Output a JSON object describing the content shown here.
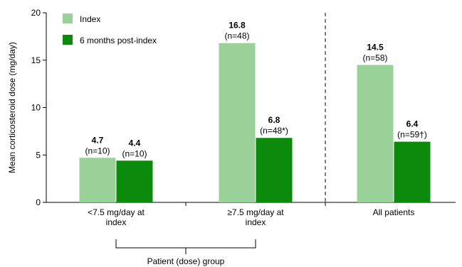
{
  "chart_data": {
    "type": "bar",
    "ylabel": "Mean corticosteroid dose (mg/day)",
    "xlabel": "Patient (dose) group",
    "ylim": [
      0,
      20
    ],
    "yticks": [
      "0",
      "5",
      "10",
      "15",
      "20"
    ],
    "categories": [
      "<7.5 mg/day at index",
      "≥7.5 mg/day at index",
      "All patients"
    ],
    "category_lines": [
      [
        "<7.5 mg/day at",
        "index"
      ],
      [
        "≥7.5 mg/day at",
        "index"
      ],
      [
        "All patients"
      ]
    ],
    "series": [
      {
        "name": "Index",
        "color": "#99d199",
        "values": [
          4.7,
          16.8,
          14.5
        ],
        "value_labels": [
          "4.7",
          "16.8",
          "14.5"
        ],
        "n_labels": [
          "(n=10)",
          "(n=48)",
          "(n=58)"
        ]
      },
      {
        "name": "6 months post-index",
        "color": "#0b8a0b",
        "values": [
          4.4,
          6.8,
          6.4
        ],
        "value_labels": [
          "4.4",
          "6.8",
          "6.4"
        ],
        "n_labels": [
          "(n=10)",
          "(n=48*)",
          "(n=59†)"
        ]
      }
    ],
    "legend_position": "top-left",
    "grid": false,
    "divider_after_category": 1
  }
}
